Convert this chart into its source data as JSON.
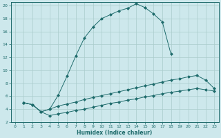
{
  "xlabel": "Humidex (Indice chaleur)",
  "bg_color": "#cde8ec",
  "grid_color": "#b0d4d8",
  "line_color": "#1e6b6b",
  "xlim": [
    -0.5,
    23.5
  ],
  "ylim": [
    2,
    20.5
  ],
  "xticks": [
    0,
    1,
    2,
    3,
    4,
    5,
    6,
    7,
    8,
    9,
    10,
    11,
    12,
    13,
    14,
    15,
    16,
    17,
    18,
    19,
    20,
    21,
    22,
    23
  ],
  "yticks": [
    2,
    4,
    6,
    8,
    10,
    12,
    14,
    16,
    18,
    20
  ],
  "line1_x": [
    1,
    2,
    3,
    4,
    5,
    6,
    7,
    8,
    9,
    10,
    11,
    12,
    13,
    14,
    15,
    16,
    17,
    18
  ],
  "line1_y": [
    5.0,
    4.7,
    3.6,
    4.0,
    6.2,
    9.1,
    12.2,
    15.0,
    16.7,
    18.0,
    18.6,
    19.2,
    19.6,
    20.3,
    19.7,
    18.7,
    17.5,
    12.5
  ],
  "line2_x": [
    1,
    2,
    3,
    4,
    5,
    6,
    7,
    8,
    9,
    10,
    11,
    12,
    13,
    14,
    15,
    16,
    17,
    18,
    19,
    20,
    21,
    22,
    23
  ],
  "line2_y": [
    5.0,
    4.7,
    3.6,
    4.0,
    4.5,
    4.8,
    5.1,
    5.5,
    5.8,
    6.1,
    6.4,
    6.7,
    7.0,
    7.3,
    7.6,
    7.9,
    8.2,
    8.5,
    8.7,
    9.0,
    9.2,
    8.5,
    7.2
  ],
  "line3_x": [
    1,
    2,
    3,
    4,
    5,
    6,
    7,
    8,
    9,
    10,
    11,
    12,
    13,
    14,
    15,
    16,
    17,
    18,
    19,
    20,
    21,
    22,
    23
  ],
  "line3_y": [
    5.0,
    4.7,
    3.6,
    3.0,
    3.3,
    3.5,
    3.8,
    4.0,
    4.3,
    4.6,
    4.9,
    5.1,
    5.4,
    5.6,
    5.9,
    6.1,
    6.4,
    6.6,
    6.8,
    7.0,
    7.2,
    7.0,
    6.8
  ]
}
